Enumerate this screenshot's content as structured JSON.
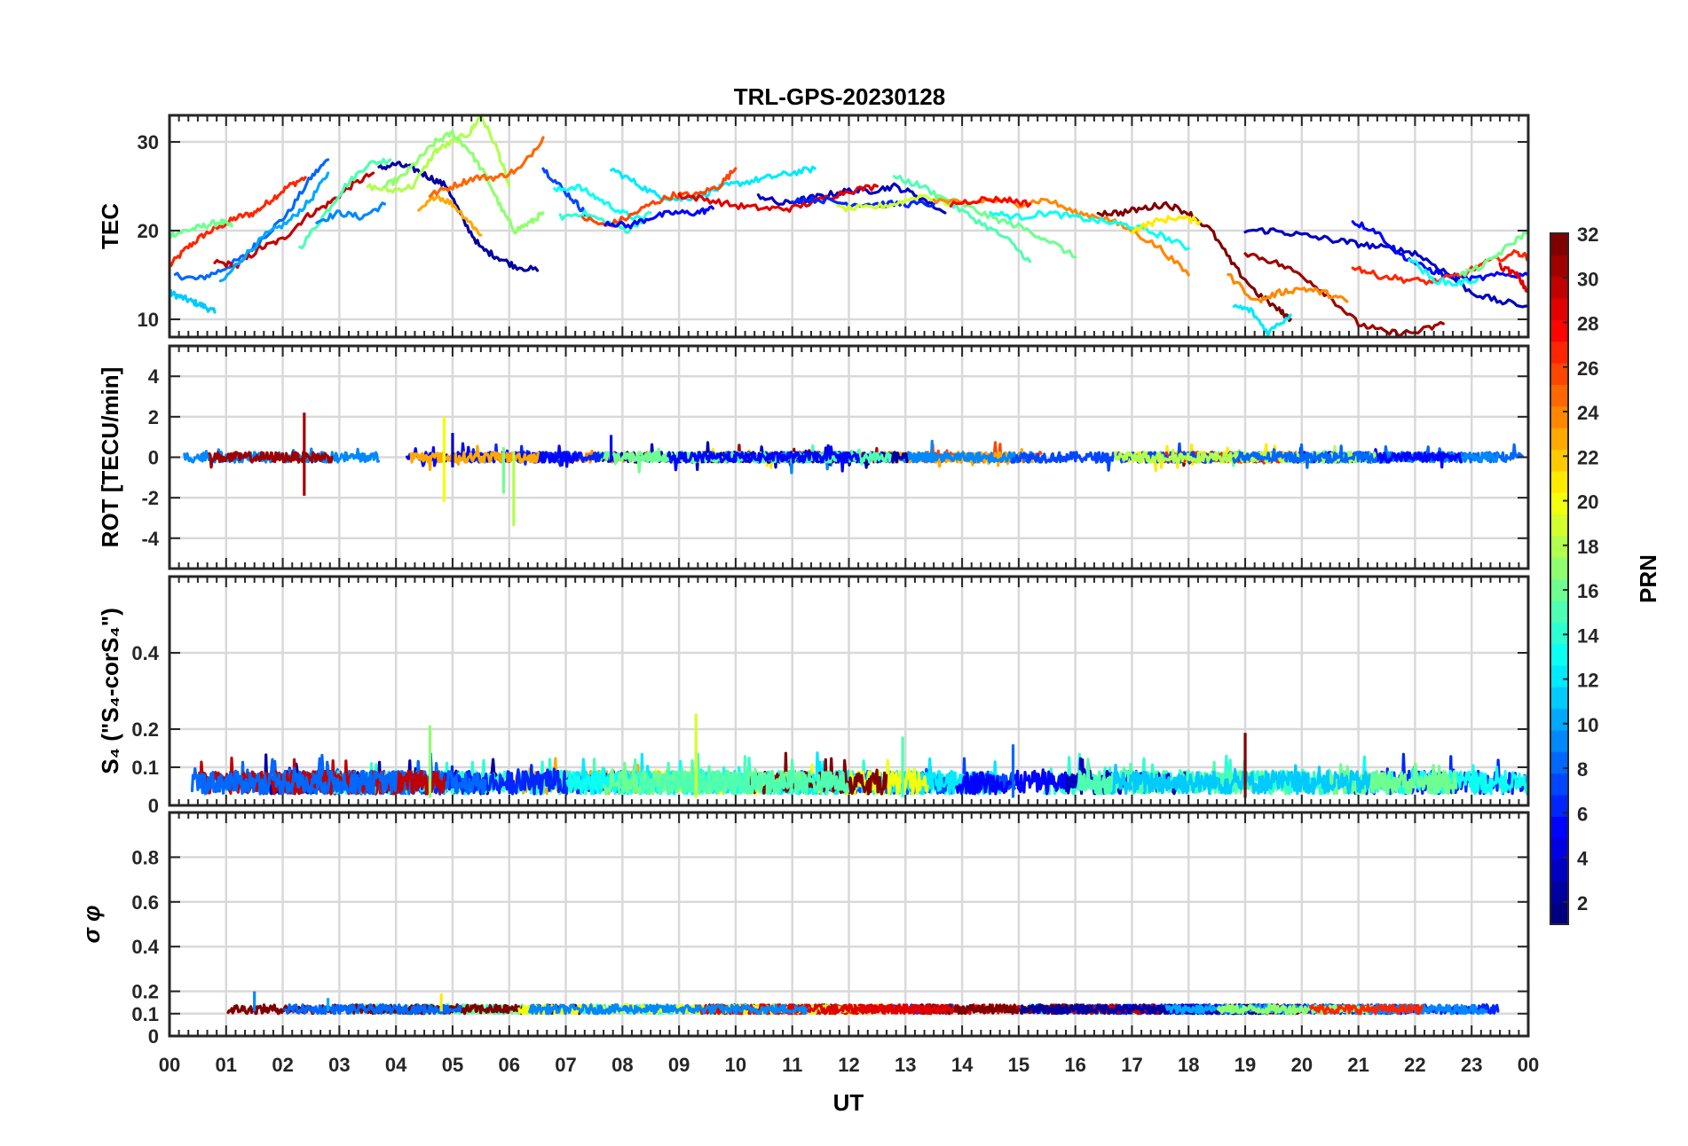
{
  "chart_data": {
    "type": "line",
    "title": "TRL-GPS-20230128",
    "xlabel": "UT",
    "x_ticks": [
      "00",
      "01",
      "02",
      "03",
      "04",
      "05",
      "06",
      "07",
      "08",
      "09",
      "10",
      "11",
      "12",
      "13",
      "14",
      "15",
      "16",
      "17",
      "18",
      "19",
      "20",
      "21",
      "22",
      "23",
      "00"
    ],
    "xlim": [
      0,
      24
    ],
    "colorbar": {
      "label": "PRN",
      "range": [
        1,
        32
      ],
      "ticks": [
        "2",
        "4",
        "6",
        "8",
        "10",
        "12",
        "14",
        "16",
        "18",
        "20",
        "22",
        "24",
        "26",
        "28",
        "30",
        "32"
      ],
      "colormap": "jet"
    },
    "panels": [
      {
        "id": "tec",
        "ylabel": "TEC",
        "ylim": [
          8,
          33
        ],
        "yticks": [
          10,
          20,
          30
        ],
        "ytick_labels": [
          "10",
          "20",
          "30"
        ],
        "series": [
          {
            "prn": 27,
            "x": [
              0.0,
              0.3,
              0.6,
              0.9,
              1.2,
              1.5,
              1.8,
              2.1,
              2.4
            ],
            "y": [
              16,
              18,
              19.5,
              20.5,
              21.5,
              22,
              23.5,
              25,
              26
            ]
          },
          {
            "prn": 11,
            "x": [
              0.0,
              0.2,
              0.4,
              0.6,
              0.8
            ],
            "y": [
              13,
              12.5,
              12,
              11.5,
              10.8
            ]
          },
          {
            "prn": 8,
            "x": [
              0.1,
              0.5,
              0.9,
              1.3,
              1.7,
              2.1,
              2.5,
              2.8
            ],
            "y": [
              15,
              14.5,
              15.5,
              17,
              19.5,
              22,
              26,
              28
            ]
          },
          {
            "prn": 16,
            "x": [
              0.0,
              0.3,
              0.6,
              0.9,
              1.1
            ],
            "y": [
              19.5,
              20,
              20.5,
              21,
              20.5
            ]
          },
          {
            "prn": 30,
            "x": [
              0.8,
              1.2,
              1.6,
              2.0,
              2.4,
              2.8,
              3.2,
              3.6
            ],
            "y": [
              16.5,
              16,
              18,
              19,
              21.5,
              23,
              25,
              26.5
            ]
          },
          {
            "prn": 10,
            "x": [
              0.9,
              1.3,
              1.7,
              2.1,
              2.5,
              2.8
            ],
            "y": [
              14,
              17,
              19.5,
              21,
              23.5,
              26.5
            ]
          },
          {
            "prn": 15,
            "x": [
              2.3,
              2.7,
              3.1,
              3.5,
              3.9
            ],
            "y": [
              18,
              21.5,
              25,
              27.5,
              28
            ]
          },
          {
            "prn": 9,
            "x": [
              2.6,
              3.0,
              3.4,
              3.8
            ],
            "y": [
              21,
              22,
              21.5,
              23
            ]
          },
          {
            "prn": 2,
            "x": [
              3.7,
              4.0,
              4.3,
              4.6,
              4.9,
              5.2,
              5.5,
              5.8,
              6.1,
              6.5
            ],
            "y": [
              27,
              27.5,
              27,
              26,
              25,
              21,
              18,
              17,
              16,
              15.5
            ]
          },
          {
            "prn": 18,
            "x": [
              3.5,
              3.9,
              4.3,
              4.7,
              5.0,
              5.3,
              5.5,
              5.8,
              6.0
            ],
            "y": [
              25,
              24.5,
              25,
              29,
              30,
              31,
              33,
              29,
              25
            ]
          },
          {
            "prn": 17,
            "x": [
              3.8,
              4.1,
              4.4,
              4.7,
              5.0,
              5.3,
              5.6,
              5.9,
              6.1,
              6.4,
              6.6
            ],
            "y": [
              25,
              26,
              28,
              30,
              31,
              29,
              26,
              22,
              20,
              21,
              22
            ]
          },
          {
            "prn": 23,
            "x": [
              4.4,
              4.7,
              5.0,
              5.3,
              5.5
            ],
            "y": [
              22,
              24,
              23,
              21,
              19.5
            ]
          },
          {
            "prn": 25,
            "x": [
              4.6,
              5.0,
              5.4,
              5.8,
              6.2,
              6.6
            ],
            "y": [
              24,
              25,
              26,
              26,
              27,
              30.5
            ]
          },
          {
            "prn": 7,
            "x": [
              6.6,
              6.9,
              7.2,
              7.4
            ],
            "y": [
              27,
              25,
              23,
              21.5
            ]
          },
          {
            "prn": 13,
            "x": [
              6.8,
              7.2,
              7.6,
              8.0,
              8.4
            ],
            "y": [
              24.5,
              25,
              23.5,
              22,
              21
            ]
          },
          {
            "prn": 12,
            "x": [
              7.8,
              8.2,
              8.6,
              9.0,
              9.4,
              9.8,
              10.2,
              10.6,
              11.0,
              11.4
            ],
            "y": [
              27,
              25.5,
              24,
              23.5,
              24,
              25,
              25.5,
              26,
              26.5,
              27
            ]
          },
          {
            "prn": 14,
            "x": [
              6.9,
              7.3,
              7.7,
              8.1,
              8.5
            ],
            "y": [
              21.5,
              22,
              21,
              20,
              22
            ]
          },
          {
            "prn": 26,
            "x": [
              7.3,
              7.7,
              8.1,
              8.5,
              8.9,
              9.3,
              9.7,
              10.0
            ],
            "y": [
              21.5,
              20.5,
              21.5,
              23,
              24,
              24,
              25,
              27
            ]
          },
          {
            "prn": 5,
            "x": [
              7.7,
              8.1,
              8.5,
              8.9,
              9.3,
              9.6
            ],
            "y": [
              21,
              20.5,
              21.5,
              22,
              22,
              22.5
            ]
          },
          {
            "prn": 3,
            "x": [
              10.4,
              10.8,
              11.2,
              11.6,
              12.0,
              12.4,
              12.8,
              13.2,
              13.7
            ],
            "y": [
              24,
              23,
              23.5,
              24,
              24.5,
              24.5,
              25,
              24,
              22
            ]
          },
          {
            "prn": 29,
            "x": [
              9.0,
              9.5,
              10.0,
              10.5,
              11.0,
              11.5,
              12.0,
              12.5
            ],
            "y": [
              24,
              23.5,
              22.8,
              22.5,
              22.5,
              23.5,
              24.5,
              25
            ]
          },
          {
            "prn": 6,
            "x": [
              11.0,
              11.5,
              12.0,
              12.5,
              13.0,
              13.5
            ],
            "y": [
              23.5,
              23.5,
              23,
              23,
              23,
              23
            ]
          },
          {
            "prn": 19,
            "x": [
              11.8,
              12.3,
              12.8,
              13.3,
              13.8
            ],
            "y": [
              22.5,
              22.5,
              23,
              24,
              23
            ]
          },
          {
            "prn": 15,
            "x": [
              12.8,
              13.3,
              13.8,
              14.3,
              14.8,
              15.2
            ],
            "y": [
              26,
              25,
              23,
              21,
              19,
              16.5
            ]
          },
          {
            "prn": 16,
            "x": [
              13.5,
              14.0,
              14.5,
              15.0,
              15.5,
              16.0
            ],
            "y": [
              24,
              23,
              21.5,
              20.5,
              19,
              17
            ]
          },
          {
            "prn": 24,
            "x": [
              13.5,
              14.0,
              14.5,
              15.0,
              15.5,
              16.0,
              16.5,
              17.0,
              17.5,
              18.0
            ],
            "y": [
              23.5,
              23,
              23.5,
              23,
              23.5,
              22,
              21.5,
              20,
              18,
              15
            ]
          },
          {
            "prn": 28,
            "x": [
              13.8,
              14.3,
              14.8,
              15.2
            ],
            "y": [
              23,
              23.5,
              23.5,
              23
            ]
          },
          {
            "prn": 13,
            "x": [
              14.5,
              15.0,
              15.5,
              16.0,
              16.5,
              17.0,
              17.5,
              18.0
            ],
            "y": [
              22,
              21.5,
              22,
              21.5,
              21,
              20.5,
              19.5,
              18
            ]
          },
          {
            "prn": 32,
            "x": [
              16.4,
              16.8,
              17.2,
              17.6,
              18.0,
              18.4,
              18.8,
              19.2,
              19.6,
              19.8
            ],
            "y": [
              22,
              22,
              22.5,
              23,
              22,
              20,
              16,
              13,
              11,
              10
            ]
          },
          {
            "prn": 21,
            "x": [
              17.0,
              17.4,
              17.8,
              18.2
            ],
            "y": [
              20,
              21,
              21.5,
              21
            ]
          },
          {
            "prn": 31,
            "x": [
              19.0,
              19.5,
              20.0,
              20.5,
              21.0,
              21.5,
              22.0,
              22.5
            ],
            "y": [
              17.5,
              16.5,
              15,
              12.5,
              9.5,
              8.5,
              8.5,
              9.5
            ]
          },
          {
            "prn": 3,
            "x": [
              19.0,
              19.5,
              20.0,
              20.5,
              21.0,
              21.5,
              22.0,
              22.5,
              23.0,
              23.5,
              24.0
            ],
            "y": [
              20,
              20,
              19.5,
              19,
              18.5,
              18,
              17.5,
              15.5,
              13,
              12,
              11.5
            ]
          },
          {
            "prn": 24,
            "x": [
              18.7,
              19.2,
              19.6,
              20.0,
              20.4,
              20.8
            ],
            "y": [
              15,
              12,
              13,
              13.5,
              13,
              12
            ]
          },
          {
            "prn": 12,
            "x": [
              18.8,
              19.1,
              19.4,
              19.8
            ],
            "y": [
              11.5,
              11,
              8.5,
              10.5
            ]
          },
          {
            "prn": 5,
            "x": [
              20.9,
              21.3,
              21.7,
              22.1,
              22.5,
              23.0,
              23.5,
              24.0
            ],
            "y": [
              21,
              20,
              17.5,
              16,
              15,
              14.5,
              15,
              15
            ]
          },
          {
            "prn": 27,
            "x": [
              20.9,
              21.3,
              21.8,
              22.3,
              22.8,
              23.3,
              23.8,
              24.0
            ],
            "y": [
              16,
              15,
              14.5,
              14.2,
              15,
              16.5,
              17.5,
              17
            ]
          },
          {
            "prn": 13,
            "x": [
              21.9,
              22.3,
              22.7,
              23.1
            ],
            "y": [
              17,
              14.5,
              14,
              14.5
            ]
          },
          {
            "prn": 16,
            "x": [
              22.8,
              23.2,
              23.6,
              24.0
            ],
            "y": [
              15,
              16,
              18,
              20
            ]
          },
          {
            "prn": 29,
            "x": [
              23.5,
              23.8,
              24.0
            ],
            "y": [
              16,
              15,
              13
            ]
          }
        ]
      },
      {
        "id": "rot",
        "ylabel": "ROT [TECU/min]",
        "ylim": [
          -5.5,
          5.5
        ],
        "yticks": [
          -4,
          -2,
          0,
          2,
          4
        ],
        "ytick_labels": [
          "-4",
          "-2",
          "0",
          "2",
          "4"
        ],
        "noise": {
          "baseline": 0.0,
          "amplitude": 0.25
        },
        "spikes": [
          {
            "x": 2.38,
            "low": -1.9,
            "high": 2.2,
            "prn": 31
          },
          {
            "x": 4.85,
            "low": -2.2,
            "high": 2.0,
            "prn": 20
          },
          {
            "x": 6.08,
            "low": -3.4,
            "high": 0.3,
            "prn": 18
          },
          {
            "x": 5.9,
            "low": -1.8,
            "high": 0.5,
            "prn": 16
          },
          {
            "x": 7.8,
            "low": -0.2,
            "high": 1.1,
            "prn": 5
          },
          {
            "x": 5.0,
            "low": -0.5,
            "high": 1.2,
            "prn": 3
          }
        ]
      },
      {
        "id": "s4",
        "ylabel": "S₄ (\"S₄-corS₄\")",
        "ylim": [
          0,
          0.6
        ],
        "yticks": [
          0,
          0.1,
          0.2,
          0.4
        ],
        "ytick_labels": [
          "0",
          "0.1",
          "0.2",
          "0.4"
        ],
        "noise": {
          "baseline": 0.05,
          "amplitude": 0.06
        },
        "spikes": [
          {
            "x": 4.6,
            "low": 0.02,
            "high": 0.21,
            "prn": 17
          },
          {
            "x": 9.3,
            "low": 0.02,
            "high": 0.24,
            "prn": 19
          },
          {
            "x": 19.0,
            "low": 0.02,
            "high": 0.19,
            "prn": 32
          },
          {
            "x": 14.9,
            "low": 0.02,
            "high": 0.16,
            "prn": 8
          },
          {
            "x": 12.95,
            "low": 0.02,
            "high": 0.18,
            "prn": 15
          }
        ]
      },
      {
        "id": "sigma",
        "ylabel": "σ φ",
        "ylim": [
          0,
          1.0
        ],
        "yticks": [
          0,
          0.1,
          0.2,
          0.4,
          0.6,
          0.8
        ],
        "ytick_labels": [
          "0",
          "0.1",
          "0.2",
          "0.4",
          "0.6",
          "0.8"
        ],
        "noise": {
          "baseline": 0.12,
          "amplitude": 0.02
        },
        "spikes": [
          {
            "x": 1.5,
            "low": 0.11,
            "high": 0.2,
            "prn": 9
          },
          {
            "x": 4.8,
            "low": 0.11,
            "high": 0.19,
            "prn": 21
          },
          {
            "x": 2.8,
            "low": 0.11,
            "high": 0.17,
            "prn": 10
          }
        ]
      }
    ]
  }
}
